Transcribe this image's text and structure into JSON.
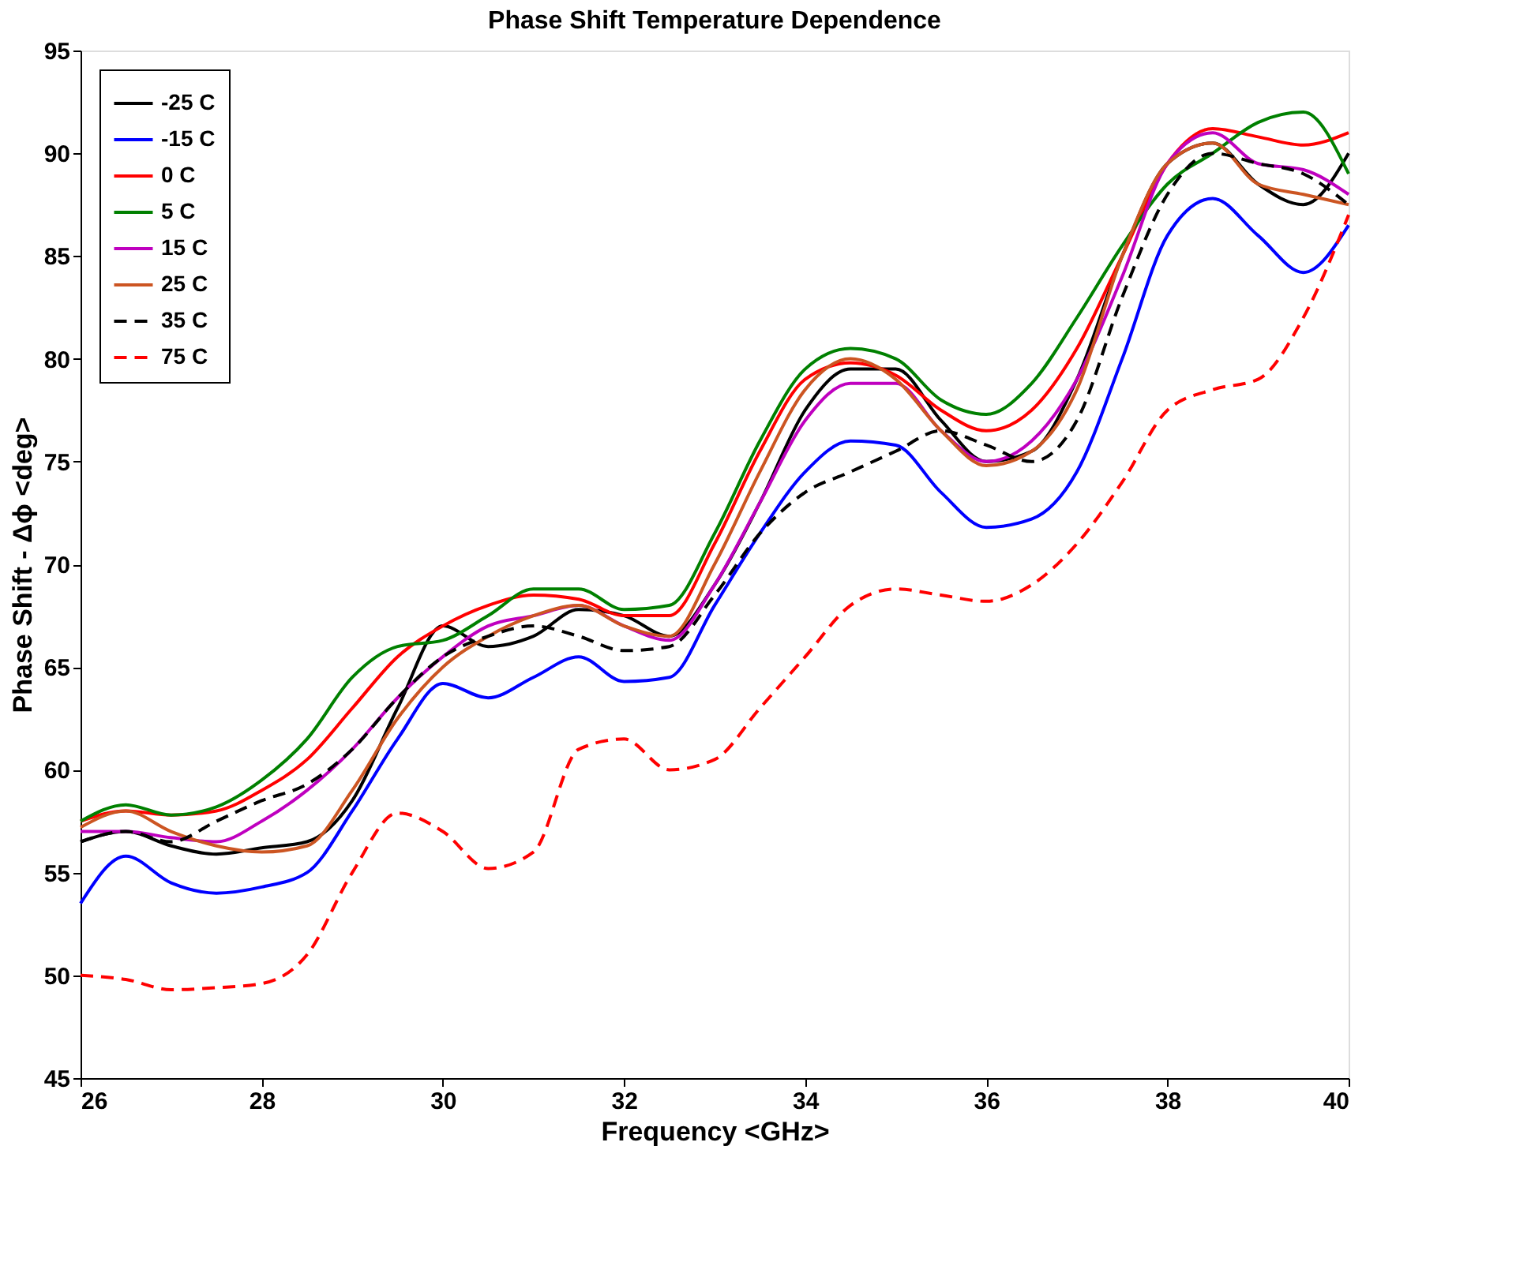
{
  "chart_data": {
    "type": "line",
    "title": "Phase Shift Temperature Dependence",
    "xlabel": "Frequency <GHz>",
    "ylabel": "Phase Shift - Δϕ <deg>",
    "x": [
      26,
      26.5,
      27,
      27.5,
      28,
      28.5,
      29,
      29.5,
      30,
      30.5,
      31,
      31.5,
      32,
      32.5,
      33,
      33.5,
      34,
      34.5,
      35,
      35.5,
      36,
      36.5,
      37,
      37.5,
      38,
      38.5,
      39,
      39.5,
      40
    ],
    "series": [
      {
        "name": "-25 C",
        "color": "#000000",
        "line_style": "solid",
        "values": [
          56.5,
          57,
          56.3,
          55.9,
          56.2,
          56.5,
          58.5,
          63,
          67,
          66,
          66.5,
          67.8,
          67.5,
          66.5,
          69,
          73,
          77.5,
          79.5,
          79.5,
          77,
          75,
          75.5,
          79,
          85,
          89.5,
          90.5,
          88.5,
          87.5,
          90
        ]
      },
      {
        "name": "-15 C",
        "color": "#0000ff",
        "line_style": "solid",
        "values": [
          53.5,
          55.8,
          54.5,
          54,
          54.3,
          55,
          58,
          61.5,
          64.2,
          63.5,
          64.5,
          65.5,
          64.3,
          64.5,
          68,
          71.5,
          74.5,
          76,
          75.8,
          73.5,
          71.8,
          72.2,
          74.5,
          80,
          86,
          87.8,
          86,
          84.2,
          86.5
        ]
      },
      {
        "name": "0 C",
        "color": "#ff0000",
        "line_style": "solid",
        "values": [
          57.5,
          58,
          57.8,
          58,
          59,
          60.5,
          63,
          65.5,
          67,
          68,
          68.5,
          68.3,
          67.5,
          67.5,
          71,
          75.5,
          79,
          79.8,
          79.2,
          77.5,
          76.5,
          77.5,
          80.5,
          85,
          89.5,
          91.2,
          90.8,
          90.4,
          91
        ]
      },
      {
        "name": "5 C",
        "color": "#008000",
        "line_style": "solid",
        "values": [
          57.5,
          58.3,
          57.8,
          58.2,
          59.5,
          61.5,
          64.5,
          66,
          66.3,
          67.5,
          68.8,
          68.8,
          67.8,
          68,
          71.5,
          76,
          79.5,
          80.5,
          80,
          78,
          77.3,
          78.8,
          82,
          85.5,
          88.5,
          90,
          91.5,
          92,
          89
        ]
      },
      {
        "name": "15 C",
        "color": "#bf00bf",
        "line_style": "solid",
        "values": [
          57,
          57,
          56.7,
          56.5,
          57.5,
          59,
          61,
          63.5,
          65.5,
          67,
          67.5,
          68,
          67,
          66.3,
          69,
          73,
          77,
          78.8,
          78.8,
          76.5,
          75,
          76,
          79,
          84,
          89.5,
          91,
          89.5,
          89.2,
          88
        ]
      },
      {
        "name": "25 C",
        "color": "#cc5522",
        "line_style": "solid",
        "values": [
          57.2,
          58,
          57,
          56.3,
          56,
          56.3,
          59,
          62.5,
          65,
          66.5,
          67.5,
          68,
          67,
          66.5,
          70,
          74.5,
          78.5,
          80,
          79,
          76.5,
          74.8,
          75.5,
          78.5,
          85,
          89.5,
          90.5,
          88.5,
          88,
          87.5
        ]
      },
      {
        "name": "35 C",
        "color": "#000000",
        "line_style": "dashed",
        "values": [
          56.5,
          57,
          56.5,
          57.5,
          58.5,
          59.3,
          61,
          63.5,
          65.5,
          66.5,
          67,
          66.5,
          65.8,
          66,
          68.5,
          71.5,
          73.5,
          74.5,
          75.5,
          76.5,
          75.8,
          75,
          77,
          83,
          88,
          90,
          89.5,
          89,
          87.5
        ]
      },
      {
        "name": "75 C",
        "color": "#ff0000",
        "line_style": "dashed",
        "values": [
          50,
          49.8,
          49.3,
          49.4,
          49.6,
          51,
          55,
          57.9,
          57,
          55.2,
          56,
          61,
          61.5,
          60,
          60.5,
          63,
          65.5,
          68,
          68.8,
          68.5,
          68.2,
          69,
          71,
          74,
          77.5,
          78.5,
          79,
          82,
          87
        ]
      }
    ],
    "xlim": [
      26,
      40
    ],
    "xticks": [
      26,
      28,
      30,
      32,
      34,
      36,
      38,
      40
    ],
    "ylim": [
      45,
      95
    ],
    "yticks": [
      45,
      50,
      55,
      60,
      65,
      70,
      75,
      80,
      85,
      90,
      95
    ],
    "grid": false,
    "legend": "top left",
    "marker": "none"
  }
}
